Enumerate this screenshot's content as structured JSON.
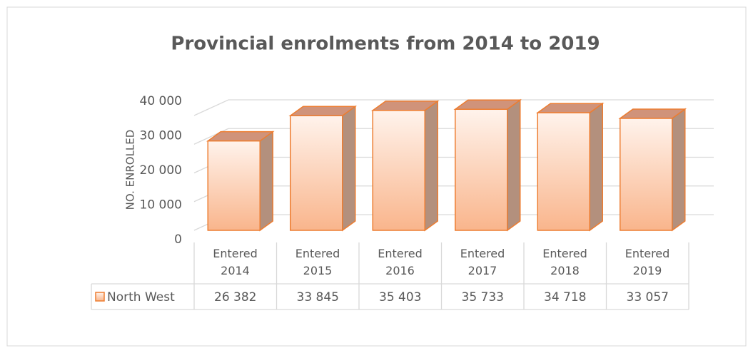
{
  "chart_data": {
    "type": "bar",
    "title": "Provincial enrolments from 2014 to 2019",
    "y_label": "NO. ENROLLED",
    "categories": [
      "Entered 2014",
      "Entered 2015",
      "Entered 2016",
      "Entered 2017",
      "Entered 2018",
      "Entered 2019"
    ],
    "series": [
      {
        "name": "North West",
        "color": "#ed7d31",
        "values": [
          26382,
          33845,
          35403,
          35733,
          34718,
          33057
        ],
        "value_labels": [
          "26 382",
          "33 845",
          "35 403",
          "35 733",
          "34 718",
          "33 057"
        ]
      }
    ],
    "ylim": [
      0,
      40000
    ],
    "yticks": [
      0,
      {
        "value": 10000,
        "label": "10 000"
      },
      {
        "value": 20000,
        "label": "20 000"
      },
      {
        "value": 30000,
        "label": "30 000"
      },
      {
        "value": 40000,
        "label": "40 000"
      }
    ],
    "grid": true,
    "legend": "table"
  }
}
